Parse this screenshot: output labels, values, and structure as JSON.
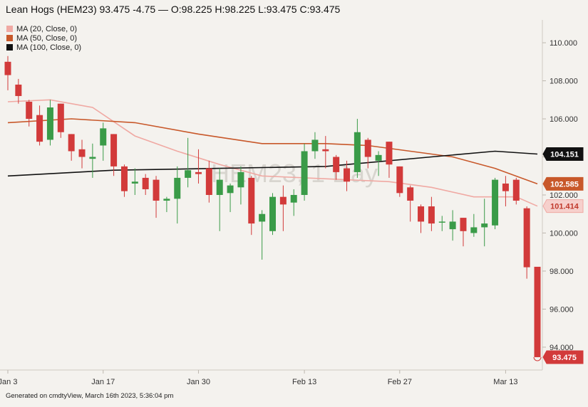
{
  "header": {
    "title": "Lean Hogs (HEM23) 93.475 -4.75 — O:98.225 H:98.225 L:93.475 C:93.475"
  },
  "watermark": "HEM23, 1 Day",
  "footer": "Generated on cmdtyView, March 16th 2023, 5:36:04 pm",
  "legend": [
    {
      "label": "MA (20, Close, 0)",
      "color": "#f0a9a3"
    },
    {
      "label": "MA (50, Close, 0)",
      "color": "#c8582a"
    },
    {
      "label": "MA (100, Close, 0)",
      "color": "#111111"
    }
  ],
  "chart_data": {
    "type": "candlestick",
    "title": "Lean Hogs (HEM23)",
    "ylim": [
      92.8,
      111.2
    ],
    "y_ticks": [
      "94.000",
      "96.000",
      "98.000",
      "100.000",
      "102.000",
      "104.000",
      "106.000",
      "108.000",
      "110.000"
    ],
    "x_ticks": [
      "Jan 3",
      "Jan 17",
      "Jan 30",
      "Feb 13",
      "Feb 27",
      "Mar 13"
    ],
    "grid": false,
    "legend_position": "top-left",
    "up_color": "#3a9b48",
    "down_color": "#d23a3a",
    "candles": [
      {
        "d": "Jan 3",
        "o": 109.0,
        "h": 109.3,
        "l": 107.5,
        "c": 108.3
      },
      {
        "d": "Jan 4",
        "o": 107.8,
        "h": 108.1,
        "l": 106.8,
        "c": 107.2
      },
      {
        "d": "Jan 5",
        "o": 106.9,
        "h": 107.0,
        "l": 105.6,
        "c": 106.0
      },
      {
        "d": "Jan 6",
        "o": 106.2,
        "h": 106.7,
        "l": 104.6,
        "c": 104.8
      },
      {
        "d": "Jan 9",
        "o": 104.9,
        "h": 107.0,
        "l": 104.6,
        "c": 106.6
      },
      {
        "d": "Jan 10",
        "o": 106.8,
        "h": 106.8,
        "l": 105.0,
        "c": 105.3
      },
      {
        "d": "Jan 11",
        "o": 105.2,
        "h": 105.2,
        "l": 103.8,
        "c": 104.3
      },
      {
        "d": "Jan 12",
        "o": 104.4,
        "h": 104.9,
        "l": 103.4,
        "c": 104.0
      },
      {
        "d": "Jan 13",
        "o": 103.9,
        "h": 104.7,
        "l": 102.9,
        "c": 104.0
      },
      {
        "d": "Jan 17",
        "o": 104.6,
        "h": 105.8,
        "l": 103.8,
        "c": 105.5
      },
      {
        "d": "Jan 18",
        "o": 105.2,
        "h": 105.2,
        "l": 103.0,
        "c": 103.5
      },
      {
        "d": "Jan 19",
        "o": 103.5,
        "h": 103.6,
        "l": 101.9,
        "c": 102.2
      },
      {
        "d": "Jan 20",
        "o": 102.6,
        "h": 103.4,
        "l": 102.0,
        "c": 102.7
      },
      {
        "d": "Jan 23",
        "o": 102.9,
        "h": 103.1,
        "l": 102.0,
        "c": 102.3
      },
      {
        "d": "Jan 24",
        "o": 102.8,
        "h": 103.0,
        "l": 100.8,
        "c": 101.7
      },
      {
        "d": "Jan 25",
        "o": 101.7,
        "h": 101.9,
        "l": 101.1,
        "c": 101.8
      },
      {
        "d": "Jan 26",
        "o": 101.8,
        "h": 103.5,
        "l": 100.5,
        "c": 102.9
      },
      {
        "d": "Jan 27",
        "o": 102.9,
        "h": 105.0,
        "l": 102.4,
        "c": 103.3
      },
      {
        "d": "Jan 30",
        "o": 103.2,
        "h": 104.4,
        "l": 102.6,
        "c": 103.1
      },
      {
        "d": "Jan 31",
        "o": 103.4,
        "h": 103.8,
        "l": 101.6,
        "c": 102.0
      },
      {
        "d": "Feb 1",
        "o": 102.0,
        "h": 103.4,
        "l": 100.1,
        "c": 102.8
      },
      {
        "d": "Feb 2",
        "o": 102.1,
        "h": 102.6,
        "l": 101.1,
        "c": 102.5
      },
      {
        "d": "Feb 3",
        "o": 102.4,
        "h": 103.5,
        "l": 101.5,
        "c": 103.2
      },
      {
        "d": "Feb 6",
        "o": 102.9,
        "h": 103.0,
        "l": 99.9,
        "c": 100.5
      },
      {
        "d": "Feb 7",
        "o": 100.6,
        "h": 101.2,
        "l": 98.6,
        "c": 101.0
      },
      {
        "d": "Feb 8",
        "o": 100.1,
        "h": 102.1,
        "l": 99.9,
        "c": 101.9
      },
      {
        "d": "Feb 9",
        "o": 101.9,
        "h": 102.5,
        "l": 100.1,
        "c": 101.5
      },
      {
        "d": "Feb 10",
        "o": 101.6,
        "h": 102.3,
        "l": 100.9,
        "c": 102.0
      },
      {
        "d": "Feb 13",
        "o": 102.0,
        "h": 104.7,
        "l": 101.7,
        "c": 104.3
      },
      {
        "d": "Feb 14",
        "o": 104.3,
        "h": 105.3,
        "l": 103.9,
        "c": 104.9
      },
      {
        "d": "Feb 15",
        "o": 104.4,
        "h": 105.1,
        "l": 103.4,
        "c": 104.3
      },
      {
        "d": "Feb 16",
        "o": 104.0,
        "h": 104.1,
        "l": 102.8,
        "c": 103.2
      },
      {
        "d": "Feb 17",
        "o": 103.4,
        "h": 103.8,
        "l": 102.2,
        "c": 102.7
      },
      {
        "d": "Feb 21",
        "o": 103.2,
        "h": 106.0,
        "l": 102.9,
        "c": 105.3
      },
      {
        "d": "Feb 22",
        "o": 104.9,
        "h": 105.0,
        "l": 103.4,
        "c": 104.0
      },
      {
        "d": "Feb 23",
        "o": 103.8,
        "h": 104.3,
        "l": 103.0,
        "c": 104.1
      },
      {
        "d": "Feb 24",
        "o": 104.8,
        "h": 104.8,
        "l": 102.9,
        "c": 103.6
      },
      {
        "d": "Feb 27",
        "o": 103.5,
        "h": 103.5,
        "l": 101.9,
        "c": 102.1
      },
      {
        "d": "Feb 28",
        "o": 102.4,
        "h": 102.5,
        "l": 100.6,
        "c": 101.7
      },
      {
        "d": "Mar 1",
        "o": 101.4,
        "h": 101.5,
        "l": 100.0,
        "c": 100.6
      },
      {
        "d": "Mar 2",
        "o": 101.4,
        "h": 101.9,
        "l": 100.1,
        "c": 100.5
      },
      {
        "d": "Mar 3",
        "o": 100.6,
        "h": 100.9,
        "l": 100.1,
        "c": 100.6
      },
      {
        "d": "Mar 6",
        "o": 100.2,
        "h": 101.2,
        "l": 99.6,
        "c": 100.6
      },
      {
        "d": "Mar 7",
        "o": 100.8,
        "h": 100.8,
        "l": 99.3,
        "c": 100.1
      },
      {
        "d": "Mar 8",
        "o": 100.0,
        "h": 101.0,
        "l": 99.8,
        "c": 100.3
      },
      {
        "d": "Mar 9",
        "o": 100.3,
        "h": 101.8,
        "l": 99.3,
        "c": 100.5
      },
      {
        "d": "Mar 10",
        "o": 100.4,
        "h": 102.9,
        "l": 100.2,
        "c": 102.8
      },
      {
        "d": "Mar 13",
        "o": 102.6,
        "h": 103.0,
        "l": 101.4,
        "c": 102.2
      },
      {
        "d": "Mar 14",
        "o": 102.8,
        "h": 102.9,
        "l": 101.5,
        "c": 101.7
      },
      {
        "d": "Mar 15",
        "o": 101.3,
        "h": 101.4,
        "l": 97.6,
        "c": 98.2
      },
      {
        "d": "Mar 16",
        "o": 98.225,
        "h": 98.225,
        "l": 93.475,
        "c": 93.475
      }
    ],
    "series": [
      {
        "name": "MA (20, Close, 0)",
        "color": "#f0a9a3",
        "last_value": "101.414",
        "points": [
          [
            0,
            106.9
          ],
          [
            4,
            107.0
          ],
          [
            8,
            106.6
          ],
          [
            12,
            105.1
          ],
          [
            16,
            104.3
          ],
          [
            20,
            103.6
          ],
          [
            24,
            103.0
          ],
          [
            28,
            102.9
          ],
          [
            32,
            102.8
          ],
          [
            36,
            102.7
          ],
          [
            40,
            102.4
          ],
          [
            44,
            101.9
          ],
          [
            48,
            101.9
          ],
          [
            50,
            101.414
          ]
        ]
      },
      {
        "name": "MA (50, Close, 0)",
        "color": "#c8582a",
        "last_value": "102.585",
        "points": [
          [
            0,
            105.8
          ],
          [
            6,
            106.0
          ],
          [
            12,
            105.8
          ],
          [
            18,
            105.2
          ],
          [
            24,
            104.7
          ],
          [
            30,
            104.7
          ],
          [
            34,
            104.6
          ],
          [
            38,
            104.3
          ],
          [
            42,
            104.0
          ],
          [
            46,
            103.4
          ],
          [
            50,
            102.585
          ]
        ]
      },
      {
        "name": "MA (100, Close, 0)",
        "color": "#111111",
        "last_value": "104.151",
        "points": [
          [
            0,
            103.0
          ],
          [
            10,
            103.3
          ],
          [
            20,
            103.4
          ],
          [
            30,
            103.5
          ],
          [
            40,
            104.0
          ],
          [
            46,
            104.3
          ],
          [
            50,
            104.151
          ]
        ]
      }
    ],
    "last_price": "93.475"
  }
}
